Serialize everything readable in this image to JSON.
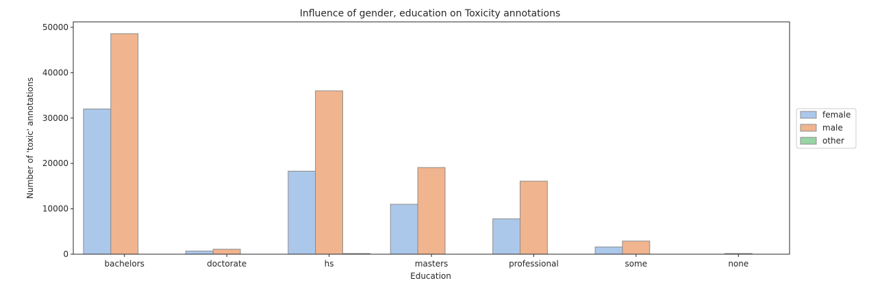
{
  "chart_data": {
    "type": "bar",
    "title": "Influence of gender, education on Toxicity annotations",
    "xlabel": "Education",
    "ylabel": "Number of 'toxic' annotations",
    "categories": [
      "bachelors",
      "doctorate",
      "hs",
      "masters",
      "professional",
      "some",
      "none"
    ],
    "ylim": [
      0,
      51200
    ],
    "yticks": [
      0,
      10000,
      20000,
      30000,
      40000,
      50000
    ],
    "grid": false,
    "legend_position": "right",
    "series": [
      {
        "name": "female",
        "color": "#abc7ea",
        "values": [
          32000,
          700,
          18300,
          11000,
          7800,
          1600,
          0
        ]
      },
      {
        "name": "male",
        "color": "#f0b48f",
        "values": [
          48600,
          1100,
          36000,
          19100,
          16100,
          2900,
          150
        ]
      },
      {
        "name": "other",
        "color": "#99d4a4",
        "values": [
          0,
          0,
          150,
          0,
          0,
          0,
          0
        ]
      }
    ]
  }
}
